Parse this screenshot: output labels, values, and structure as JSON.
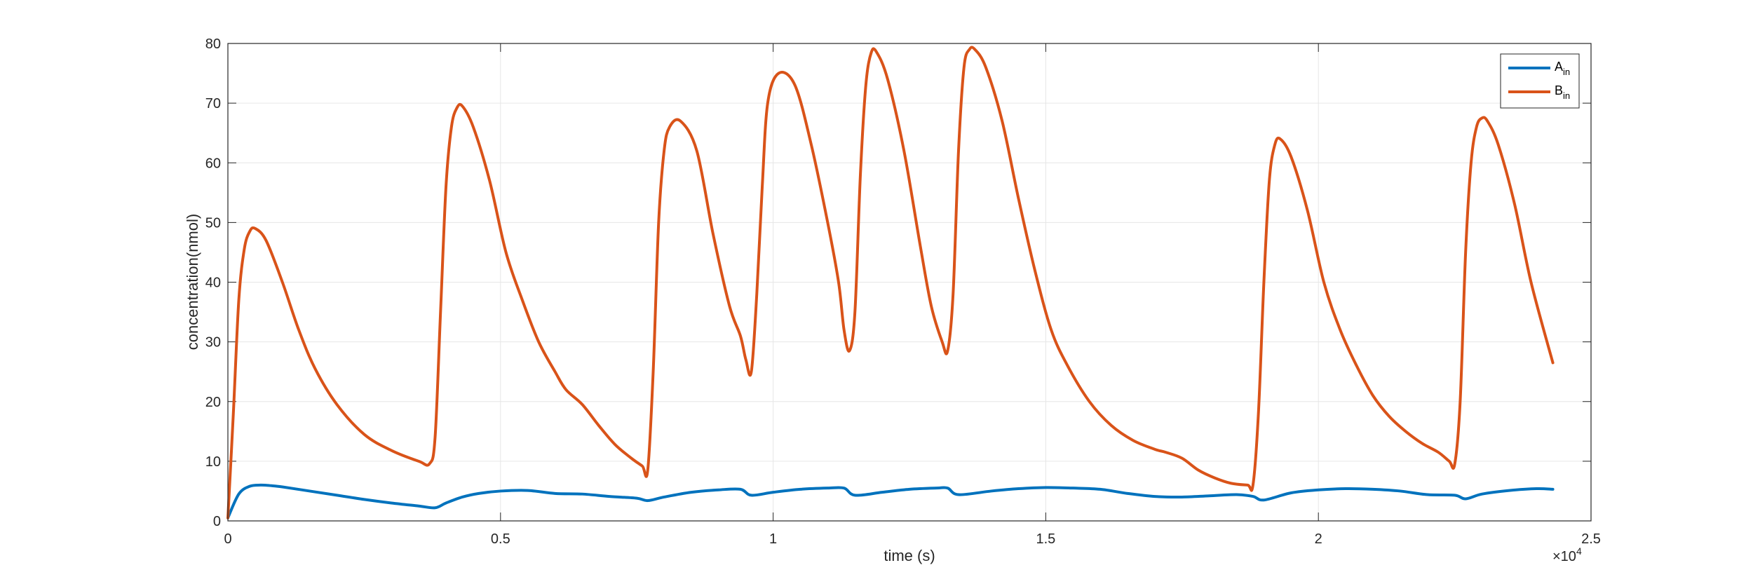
{
  "chart_data": {
    "type": "line",
    "title": "",
    "xlabel": "time (s)",
    "ylabel": "concentration(nmol)",
    "xlim": [
      0,
      25000
    ],
    "ylim": [
      0,
      80
    ],
    "x_ticks": [
      0,
      5000,
      10000,
      15000,
      20000,
      25000
    ],
    "x_tick_labels": [
      "0",
      "0.5",
      "1",
      "1.5",
      "2",
      "2.5"
    ],
    "x_exponent": {
      "prefix": "×10",
      "power": "4"
    },
    "y_ticks": [
      0,
      10,
      20,
      30,
      40,
      50,
      60,
      70,
      80
    ],
    "y_tick_labels": [
      "0",
      "10",
      "20",
      "30",
      "40",
      "50",
      "60",
      "70",
      "80"
    ],
    "grid": true,
    "legend_position": "top-right",
    "series": [
      {
        "name": "A",
        "name_sub": "in",
        "color": "#0072BD",
        "x": [
          0,
          200,
          400,
          600,
          800,
          1000,
          1500,
          2000,
          2500,
          3000,
          3500,
          3800,
          4000,
          4300,
          4600,
          5000,
          5500,
          6000,
          6500,
          7000,
          7500,
          7700,
          8000,
          8500,
          9000,
          9400,
          9600,
          10000,
          10500,
          11000,
          11300,
          11500,
          12000,
          12500,
          13000,
          13200,
          13400,
          14000,
          14500,
          15000,
          15500,
          16000,
          16500,
          17000,
          17500,
          18000,
          18500,
          18800,
          19000,
          19500,
          20000,
          20500,
          21000,
          21500,
          22000,
          22500,
          22700,
          23000,
          23500,
          24000,
          24300
        ],
        "y": [
          0.5,
          4.5,
          5.8,
          6.0,
          5.9,
          5.7,
          5.0,
          4.3,
          3.6,
          3.0,
          2.5,
          2.2,
          3.0,
          4.0,
          4.6,
          5.0,
          5.1,
          4.6,
          4.5,
          4.1,
          3.8,
          3.4,
          4.0,
          4.8,
          5.2,
          5.3,
          4.3,
          4.8,
          5.3,
          5.5,
          5.5,
          4.3,
          4.8,
          5.3,
          5.5,
          5.5,
          4.4,
          5.0,
          5.4,
          5.6,
          5.5,
          5.3,
          4.6,
          4.1,
          4.0,
          4.2,
          4.4,
          4.1,
          3.5,
          4.7,
          5.2,
          5.4,
          5.3,
          5.0,
          4.4,
          4.3,
          3.7,
          4.5,
          5.1,
          5.4,
          5.3
        ]
      },
      {
        "name": "B",
        "name_sub": "in",
        "color": "#D95319",
        "x": [
          0,
          100,
          200,
          300,
          400,
          500,
          700,
          1000,
          1300,
          1600,
          2000,
          2500,
          3000,
          3500,
          3700,
          3800,
          3900,
          4000,
          4100,
          4200,
          4300,
          4500,
          4800,
          5100,
          5400,
          5700,
          6000,
          6200,
          6500,
          6800,
          7100,
          7400,
          7600,
          7700,
          7800,
          7900,
          8000,
          8100,
          8300,
          8600,
          8900,
          9200,
          9400,
          9500,
          9600,
          9700,
          9800,
          9900,
          10100,
          10400,
          10700,
          11000,
          11200,
          11300,
          11400,
          11500,
          11600,
          11700,
          11800,
          11900,
          12100,
          12400,
          12700,
          12900,
          13100,
          13200,
          13300,
          13400,
          13500,
          13600,
          13700,
          13900,
          14200,
          14500,
          14800,
          15100,
          15400,
          15800,
          16200,
          16600,
          17000,
          17200,
          17500,
          17800,
          18100,
          18400,
          18700,
          18800,
          18900,
          19000,
          19100,
          19200,
          19300,
          19500,
          19800,
          20100,
          20400,
          20700,
          21000,
          21300,
          21600,
          21900,
          22200,
          22400,
          22500,
          22600,
          22700,
          22800,
          22900,
          23000,
          23100,
          23300,
          23600,
          23900,
          24300
        ],
        "y": [
          0.5,
          18,
          37,
          45.5,
          48.5,
          49,
          47,
          40,
          32,
          25.5,
          19.5,
          14.5,
          11.8,
          10,
          9.6,
          14,
          35,
          56,
          66,
          69.2,
          69.5,
          66,
          57,
          45,
          37,
          30,
          25,
          22,
          19.5,
          16,
          12.8,
          10.5,
          9.2,
          8.5,
          25,
          50,
          62,
          66,
          67,
          62,
          48,
          36,
          31,
          27,
          25,
          38,
          56,
          70,
          75,
          73,
          63,
          50,
          40,
          32,
          28.5,
          35,
          58,
          73,
          78.5,
          78.5,
          74,
          62,
          46,
          36,
          30,
          28.5,
          38,
          62,
          76,
          79,
          79,
          76,
          67,
          54,
          42,
          32,
          26,
          20,
          16,
          13.5,
          12,
          11.5,
          10.5,
          8.5,
          7.2,
          6.3,
          6,
          6,
          18,
          40,
          57,
          63,
          64,
          61,
          52,
          40,
          32,
          26,
          21,
          17.5,
          15,
          13,
          11.5,
          10,
          9.5,
          20,
          45,
          60,
          66,
          67.5,
          67,
          63,
          53,
          40,
          26.5
        ]
      }
    ]
  }
}
